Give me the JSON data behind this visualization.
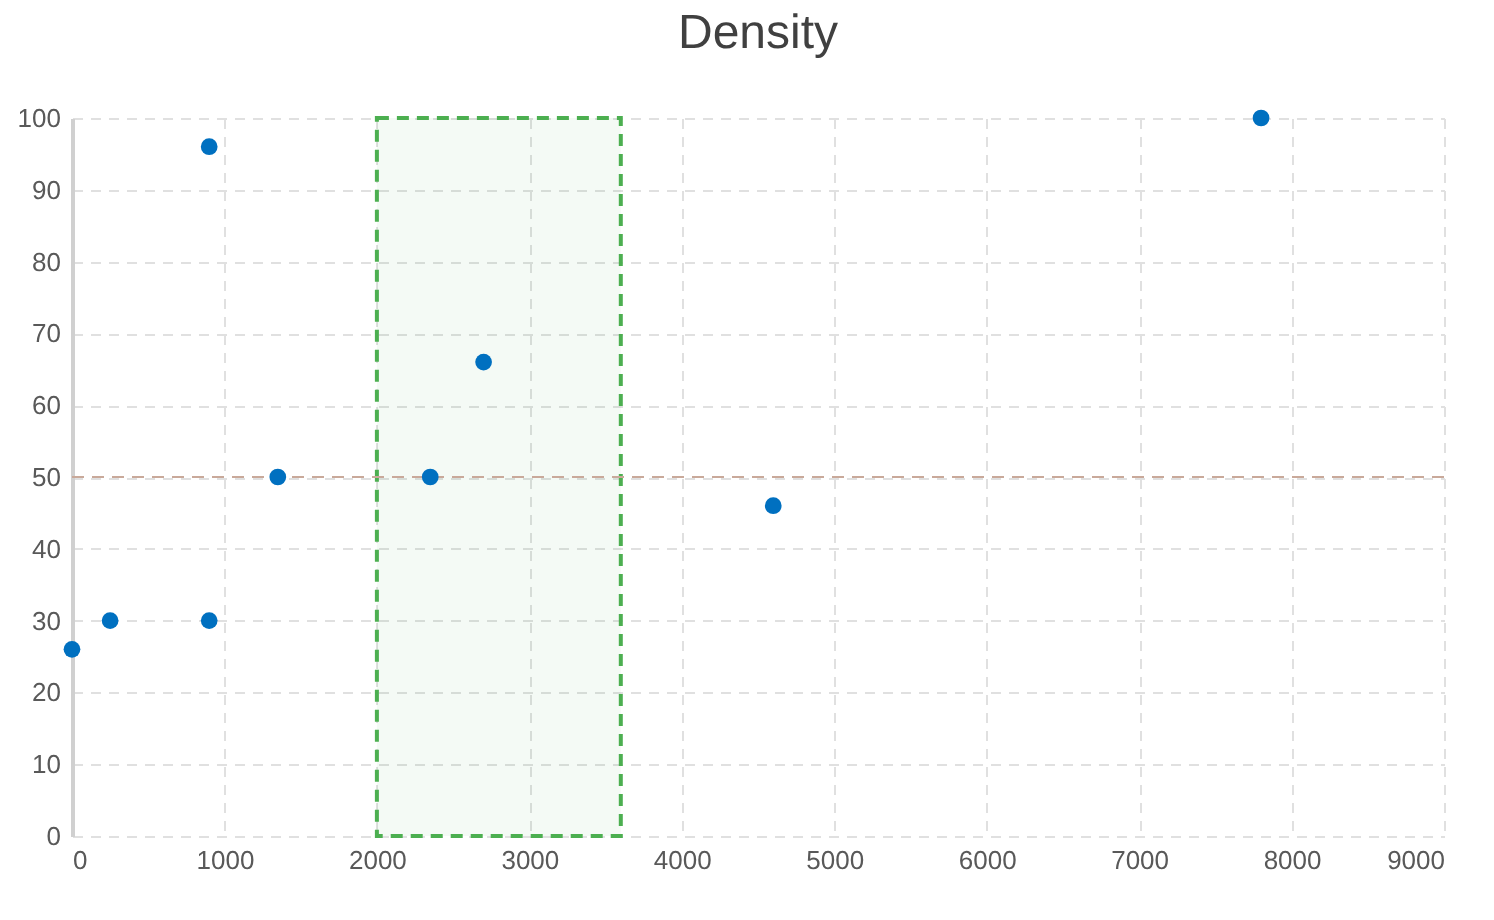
{
  "chart_data": {
    "type": "scatter",
    "title": "Density",
    "x": [
      0,
      250,
      900,
      900,
      1350,
      2350,
      2700,
      4600,
      7800
    ],
    "series": [
      {
        "color": "#0070c0",
        "values": [
          26,
          30,
          30,
          96,
          50,
          50,
          66,
          46,
          100
        ]
      }
    ],
    "xlim": [
      0,
      9000
    ],
    "xticks": [
      0,
      1000,
      2000,
      3000,
      4000,
      5000,
      6000,
      7000,
      8000,
      9000
    ],
    "ylim": [
      0,
      100
    ],
    "yticks": [
      0,
      10,
      20,
      30,
      40,
      50,
      60,
      70,
      80,
      90,
      100
    ],
    "grid": true,
    "marker": "circle",
    "ref_lines": [
      {
        "axis": "y",
        "value": 50,
        "color": "#c9a99a",
        "line_style": "dashed"
      }
    ],
    "bands": [
      {
        "axis": "x",
        "from": 2000,
        "to": 3600,
        "color": "#4caf50"
      }
    ]
  }
}
